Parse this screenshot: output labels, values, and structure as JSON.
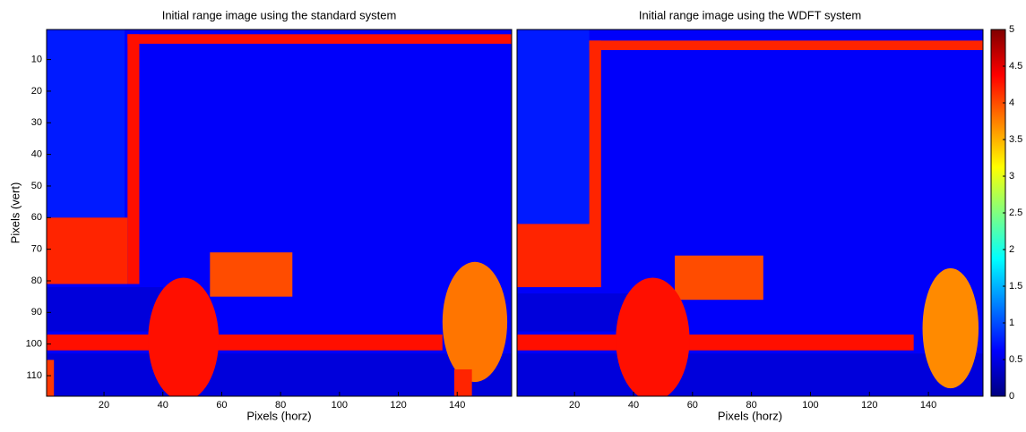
{
  "chart_data": [
    {
      "type": "heatmap",
      "title": "Initial range image using the standard system",
      "xlabel": "Pixels (horz)",
      "ylabel": "Pixels (vert)",
      "xlim": [
        0.5,
        158.5
      ],
      "ylim": [
        116.5,
        0.5
      ],
      "xticks": [
        20,
        40,
        60,
        80,
        100,
        120,
        140
      ],
      "yticks": [
        10,
        20,
        30,
        40,
        50,
        60,
        70,
        80,
        90,
        100,
        110
      ],
      "background": 0.6,
      "regions": [
        {
          "shape": "rect",
          "x": [
            0.5,
            40
          ],
          "y": [
            82,
            96
          ],
          "value": 0.45
        },
        {
          "shape": "rect",
          "x": [
            0.5,
            158.5
          ],
          "y": [
            103,
            116.5
          ],
          "value": 0.45
        },
        {
          "shape": "rect",
          "x": [
            0.5,
            27
          ],
          "y": [
            0.5,
            60
          ],
          "value": 0.75
        },
        {
          "shape": "rect",
          "x": [
            28,
            158.5
          ],
          "y": [
            2,
            5
          ],
          "value": 4.3
        },
        {
          "shape": "rect",
          "x": [
            28,
            32
          ],
          "y": [
            2,
            81
          ],
          "value": 4.3
        },
        {
          "shape": "rect",
          "x": [
            0.5,
            28
          ],
          "y": [
            60,
            81
          ],
          "value": 4.2
        },
        {
          "shape": "rect",
          "x": [
            56,
            84
          ],
          "y": [
            71,
            85
          ],
          "value": 4.0
        },
        {
          "shape": "rect",
          "x": [
            0.5,
            135
          ],
          "y": [
            97,
            102
          ],
          "value": 4.3
        },
        {
          "shape": "rect",
          "x": [
            0.5,
            3
          ],
          "y": [
            105,
            116.5
          ],
          "value": 4.1
        },
        {
          "shape": "ellipse",
          "x": [
            35,
            59
          ],
          "y": [
            79,
            118
          ],
          "value": 4.3
        },
        {
          "shape": "ellipse",
          "x": [
            135,
            157
          ],
          "y": [
            74,
            112
          ],
          "value": 3.8
        },
        {
          "shape": "rect",
          "x": [
            139,
            145
          ],
          "y": [
            108,
            116.5
          ],
          "value": 4.2
        }
      ]
    },
    {
      "type": "heatmap",
      "title": "Initial range image using the WDFT system",
      "xlabel": "Pixels (horz)",
      "xlim": [
        0.5,
        158.5
      ],
      "ylim": [
        116.5,
        0.5
      ],
      "xticks": [
        20,
        40,
        60,
        80,
        100,
        120,
        140
      ],
      "background": 0.6,
      "regions": [
        {
          "shape": "rect",
          "x": [
            0.5,
            40
          ],
          "y": [
            84,
            96
          ],
          "value": 0.45
        },
        {
          "shape": "rect",
          "x": [
            0.5,
            158.5
          ],
          "y": [
            103,
            116.5
          ],
          "value": 0.45
        },
        {
          "shape": "rect",
          "x": [
            0.5,
            25
          ],
          "y": [
            0.5,
            62
          ],
          "value": 0.75
        },
        {
          "shape": "rect",
          "x": [
            25,
            158.5
          ],
          "y": [
            4,
            7
          ],
          "value": 4.2
        },
        {
          "shape": "rect",
          "x": [
            25,
            29
          ],
          "y": [
            4,
            82
          ],
          "value": 4.2
        },
        {
          "shape": "rect",
          "x": [
            0.5,
            27
          ],
          "y": [
            62,
            82
          ],
          "value": 4.2
        },
        {
          "shape": "rect",
          "x": [
            54,
            84
          ],
          "y": [
            72,
            86
          ],
          "value": 4.0
        },
        {
          "shape": "rect",
          "x": [
            0.5,
            135
          ],
          "y": [
            97,
            102
          ],
          "value": 4.3
        },
        {
          "shape": "ellipse",
          "x": [
            34,
            59
          ],
          "y": [
            79,
            118
          ],
          "value": 4.3
        },
        {
          "shape": "ellipse",
          "x": [
            138,
            157
          ],
          "y": [
            76,
            114
          ],
          "value": 3.7
        }
      ]
    }
  ],
  "colorbar": {
    "clim": [
      0,
      5
    ],
    "ticks": [
      0,
      0.5,
      1,
      1.5,
      2,
      2.5,
      3,
      3.5,
      4,
      4.5,
      5
    ]
  }
}
